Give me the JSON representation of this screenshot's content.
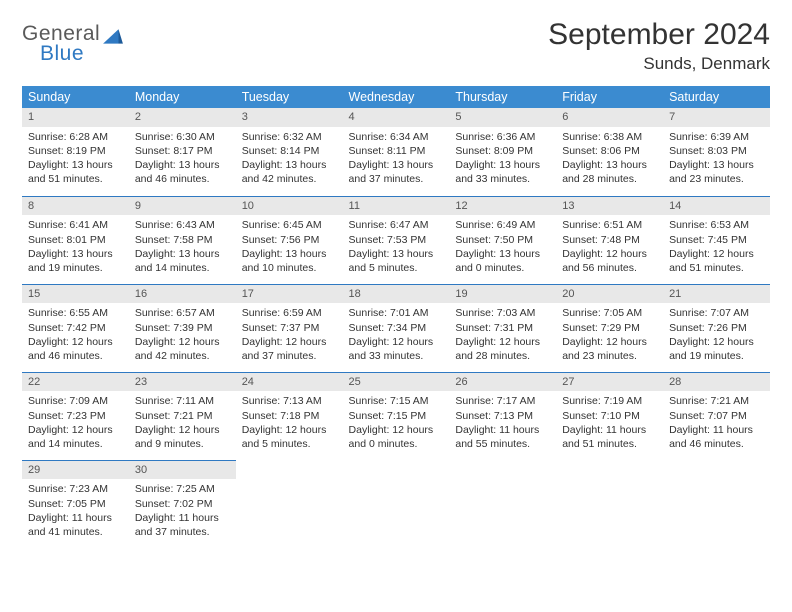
{
  "branding": {
    "word1": "General",
    "word2": "Blue",
    "color_general": "#5a5a5a",
    "color_blue": "#2f79c2",
    "triangle_color": "#2f79c2"
  },
  "header": {
    "month_title": "September 2024",
    "location": "Sunds, Denmark"
  },
  "styling": {
    "header_bg": "#3b8bd0",
    "header_text": "#ffffff",
    "daynum_bg": "#e8e8e8",
    "border_color": "#2f79c2",
    "body_font_size": 10.5,
    "title_font_size": 30
  },
  "day_names": [
    "Sunday",
    "Monday",
    "Tuesday",
    "Wednesday",
    "Thursday",
    "Friday",
    "Saturday"
  ],
  "days": [
    {
      "n": "1",
      "sunrise": "6:28 AM",
      "sunset": "8:19 PM",
      "day_h": "13",
      "day_m": "51"
    },
    {
      "n": "2",
      "sunrise": "6:30 AM",
      "sunset": "8:17 PM",
      "day_h": "13",
      "day_m": "46"
    },
    {
      "n": "3",
      "sunrise": "6:32 AM",
      "sunset": "8:14 PM",
      "day_h": "13",
      "day_m": "42"
    },
    {
      "n": "4",
      "sunrise": "6:34 AM",
      "sunset": "8:11 PM",
      "day_h": "13",
      "day_m": "37"
    },
    {
      "n": "5",
      "sunrise": "6:36 AM",
      "sunset": "8:09 PM",
      "day_h": "13",
      "day_m": "33"
    },
    {
      "n": "6",
      "sunrise": "6:38 AM",
      "sunset": "8:06 PM",
      "day_h": "13",
      "day_m": "28"
    },
    {
      "n": "7",
      "sunrise": "6:39 AM",
      "sunset": "8:03 PM",
      "day_h": "13",
      "day_m": "23"
    },
    {
      "n": "8",
      "sunrise": "6:41 AM",
      "sunset": "8:01 PM",
      "day_h": "13",
      "day_m": "19"
    },
    {
      "n": "9",
      "sunrise": "6:43 AM",
      "sunset": "7:58 PM",
      "day_h": "13",
      "day_m": "14"
    },
    {
      "n": "10",
      "sunrise": "6:45 AM",
      "sunset": "7:56 PM",
      "day_h": "13",
      "day_m": "10"
    },
    {
      "n": "11",
      "sunrise": "6:47 AM",
      "sunset": "7:53 PM",
      "day_h": "13",
      "day_m": "5"
    },
    {
      "n": "12",
      "sunrise": "6:49 AM",
      "sunset": "7:50 PM",
      "day_h": "13",
      "day_m": "0"
    },
    {
      "n": "13",
      "sunrise": "6:51 AM",
      "sunset": "7:48 PM",
      "day_h": "12",
      "day_m": "56"
    },
    {
      "n": "14",
      "sunrise": "6:53 AM",
      "sunset": "7:45 PM",
      "day_h": "12",
      "day_m": "51"
    },
    {
      "n": "15",
      "sunrise": "6:55 AM",
      "sunset": "7:42 PM",
      "day_h": "12",
      "day_m": "46"
    },
    {
      "n": "16",
      "sunrise": "6:57 AM",
      "sunset": "7:39 PM",
      "day_h": "12",
      "day_m": "42"
    },
    {
      "n": "17",
      "sunrise": "6:59 AM",
      "sunset": "7:37 PM",
      "day_h": "12",
      "day_m": "37"
    },
    {
      "n": "18",
      "sunrise": "7:01 AM",
      "sunset": "7:34 PM",
      "day_h": "12",
      "day_m": "33"
    },
    {
      "n": "19",
      "sunrise": "7:03 AM",
      "sunset": "7:31 PM",
      "day_h": "12",
      "day_m": "28"
    },
    {
      "n": "20",
      "sunrise": "7:05 AM",
      "sunset": "7:29 PM",
      "day_h": "12",
      "day_m": "23"
    },
    {
      "n": "21",
      "sunrise": "7:07 AM",
      "sunset": "7:26 PM",
      "day_h": "12",
      "day_m": "19"
    },
    {
      "n": "22",
      "sunrise": "7:09 AM",
      "sunset": "7:23 PM",
      "day_h": "12",
      "day_m": "14"
    },
    {
      "n": "23",
      "sunrise": "7:11 AM",
      "sunset": "7:21 PM",
      "day_h": "12",
      "day_m": "9"
    },
    {
      "n": "24",
      "sunrise": "7:13 AM",
      "sunset": "7:18 PM",
      "day_h": "12",
      "day_m": "5"
    },
    {
      "n": "25",
      "sunrise": "7:15 AM",
      "sunset": "7:15 PM",
      "day_h": "12",
      "day_m": "0"
    },
    {
      "n": "26",
      "sunrise": "7:17 AM",
      "sunset": "7:13 PM",
      "day_h": "11",
      "day_m": "55"
    },
    {
      "n": "27",
      "sunrise": "7:19 AM",
      "sunset": "7:10 PM",
      "day_h": "11",
      "day_m": "51"
    },
    {
      "n": "28",
      "sunrise": "7:21 AM",
      "sunset": "7:07 PM",
      "day_h": "11",
      "day_m": "46"
    },
    {
      "n": "29",
      "sunrise": "7:23 AM",
      "sunset": "7:05 PM",
      "day_h": "11",
      "day_m": "41"
    },
    {
      "n": "30",
      "sunrise": "7:25 AM",
      "sunset": "7:02 PM",
      "day_h": "11",
      "day_m": "37"
    }
  ],
  "labels": {
    "sunrise_prefix": "Sunrise: ",
    "sunset_prefix": "Sunset: ",
    "daylight_prefix": "Daylight: ",
    "hours_word": " hours",
    "and_word": "and ",
    "minutes_word": " minutes."
  }
}
